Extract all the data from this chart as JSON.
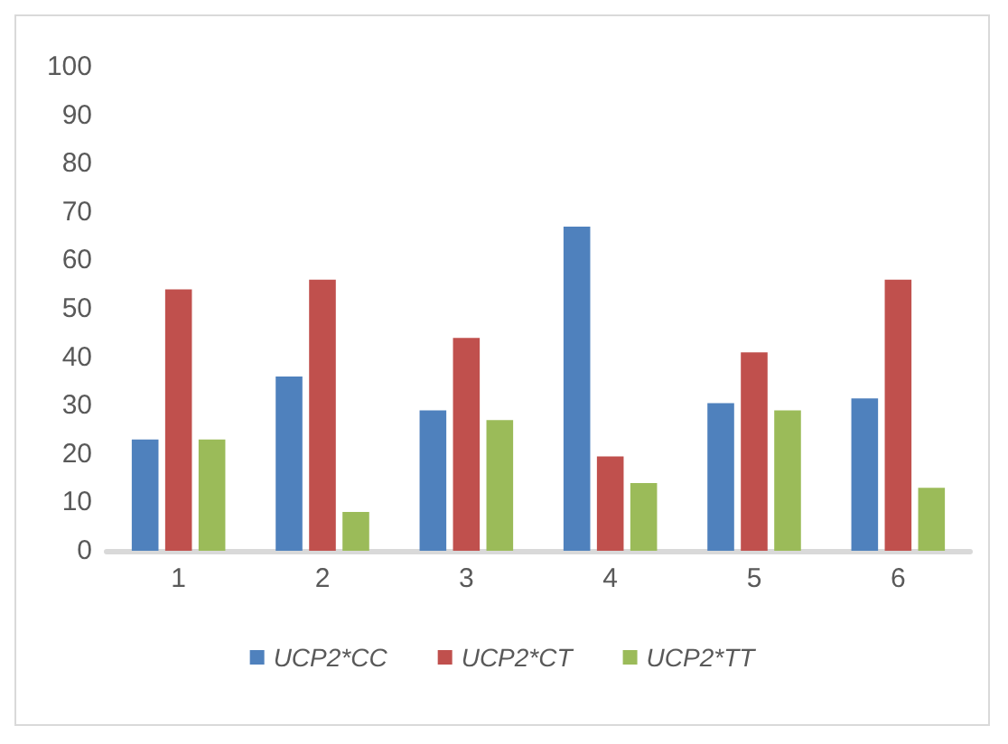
{
  "chart_data": {
    "type": "bar",
    "categories": [
      "1",
      "2",
      "3",
      "4",
      "5",
      "6"
    ],
    "series": [
      {
        "name": "UCP2*CC",
        "color": "#4f81bd",
        "values": [
          23,
          36,
          29,
          67,
          30.5,
          31.5
        ]
      },
      {
        "name": "UCP2*CT",
        "color": "#c0504d",
        "values": [
          54,
          56,
          44,
          19.5,
          41,
          56
        ]
      },
      {
        "name": "UCP2*TT",
        "color": "#9bbb59",
        "values": [
          23,
          8,
          27,
          14,
          29,
          13
        ]
      }
    ],
    "ylim": [
      0,
      100
    ],
    "yticks": [
      0,
      10,
      20,
      30,
      40,
      50,
      60,
      70,
      80,
      90,
      100
    ],
    "grid": false,
    "legend": "bottom"
  }
}
